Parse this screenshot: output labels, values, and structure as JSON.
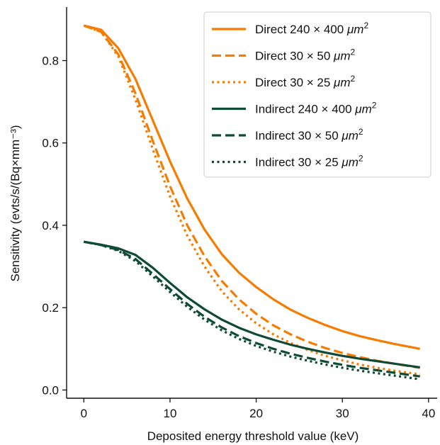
{
  "chart_data": {
    "type": "line",
    "title": "",
    "xlabel": "Deposited energy threshold value (keV)",
    "ylabel": "Sensitivity (evts/s/(Bq×mm⁻³)",
    "xlim": [
      -2,
      41
    ],
    "ylim": [
      -0.02,
      0.93
    ],
    "xticks": [
      0,
      10,
      20,
      30,
      40
    ],
    "yticks": [
      0.0,
      0.2,
      0.4,
      0.6,
      0.8
    ],
    "xtick_labels": [
      "0",
      "10",
      "20",
      "30",
      "40"
    ],
    "ytick_labels": [
      "0.0",
      "0.2",
      "0.4",
      "0.6",
      "0.8"
    ],
    "grid": false,
    "legend_position": "top-right",
    "x": [
      0,
      2,
      4,
      6,
      8,
      10,
      12,
      14,
      16,
      18,
      20,
      22,
      24,
      26,
      28,
      30,
      32,
      34,
      36,
      38,
      39
    ],
    "series": [
      {
        "name": "Direct 240 × 400 μm²",
        "color": "#f57c00",
        "dash": "solid",
        "values": [
          0.885,
          0.875,
          0.83,
          0.755,
          0.655,
          0.555,
          0.465,
          0.39,
          0.33,
          0.285,
          0.25,
          0.22,
          0.195,
          0.175,
          0.158,
          0.143,
          0.131,
          0.121,
          0.112,
          0.104,
          0.1
        ]
      },
      {
        "name": "Direct 30 × 50 μm²",
        "color": "#f57c00",
        "dash": "dashed",
        "values": [
          0.885,
          0.87,
          0.815,
          0.72,
          0.605,
          0.495,
          0.4,
          0.325,
          0.265,
          0.22,
          0.185,
          0.157,
          0.135,
          0.117,
          0.102,
          0.09,
          0.08,
          0.071,
          0.064,
          0.057,
          0.054
        ]
      },
      {
        "name": "Direct 30 × 25 μm²",
        "color": "#f57c00",
        "dash": "dotted",
        "values": [
          0.885,
          0.87,
          0.81,
          0.705,
          0.585,
          0.47,
          0.375,
          0.3,
          0.24,
          0.196,
          0.162,
          0.135,
          0.114,
          0.097,
          0.083,
          0.072,
          0.062,
          0.054,
          0.047,
          0.041,
          0.038
        ]
      },
      {
        "name": "Indirect 240 × 400 μm²",
        "color": "#0e4a36",
        "dash": "solid",
        "values": [
          0.36,
          0.353,
          0.344,
          0.328,
          0.297,
          0.26,
          0.225,
          0.196,
          0.171,
          0.151,
          0.135,
          0.122,
          0.11,
          0.1,
          0.091,
          0.083,
          0.076,
          0.07,
          0.064,
          0.058,
          0.055
        ]
      },
      {
        "name": "Indirect 30 × 50 μm²",
        "color": "#0e4a36",
        "dash": "dashed",
        "values": [
          0.36,
          0.352,
          0.34,
          0.318,
          0.282,
          0.245,
          0.209,
          0.178,
          0.152,
          0.131,
          0.114,
          0.1,
          0.088,
          0.078,
          0.069,
          0.061,
          0.054,
          0.048,
          0.042,
          0.036,
          0.033
        ]
      },
      {
        "name": "Indirect 30 × 25 μm²",
        "color": "#0e4a36",
        "dash": "dotted",
        "values": [
          0.36,
          0.352,
          0.338,
          0.313,
          0.276,
          0.238,
          0.202,
          0.171,
          0.145,
          0.124,
          0.107,
          0.093,
          0.081,
          0.071,
          0.062,
          0.054,
          0.047,
          0.041,
          0.035,
          0.029,
          0.026
        ]
      }
    ],
    "legend_entries": [
      {
        "prefix": "Direct 240 × 400 ",
        "unit": "μm",
        "sup": "2"
      },
      {
        "prefix": "Direct 30 × 50 ",
        "unit": "μm",
        "sup": "2"
      },
      {
        "prefix": "Direct 30 × 25 ",
        "unit": "μm",
        "sup": "2"
      },
      {
        "prefix": "Indirect 240 × 400 ",
        "unit": "μm",
        "sup": "2"
      },
      {
        "prefix": "Indirect 30 × 50 ",
        "unit": "μm",
        "sup": "2"
      },
      {
        "prefix": "Indirect 30 × 25 ",
        "unit": "μm",
        "sup": "2"
      }
    ]
  }
}
